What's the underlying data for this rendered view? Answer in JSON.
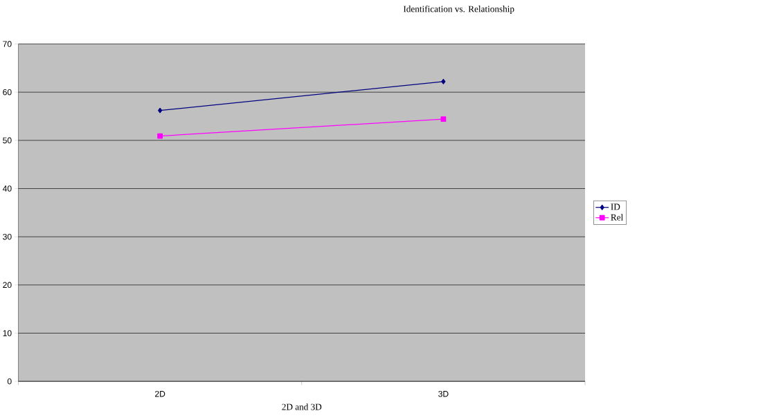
{
  "chart_data": {
    "type": "line",
    "title": "Identification vs. Relationship",
    "xlabel": "2D and 3D",
    "categories": [
      "2D",
      "3D"
    ],
    "series": [
      {
        "name": "ID",
        "color": "#000080",
        "marker": "diamond",
        "values": [
          56.2,
          62.2
        ]
      },
      {
        "name": "Rel",
        "color": "#ff00ff",
        "marker": "square",
        "values": [
          50.9,
          54.4
        ]
      }
    ],
    "ylim": [
      0,
      70
    ],
    "yticks": [
      0,
      10,
      20,
      30,
      40,
      50,
      60,
      70
    ],
    "grid": "y",
    "legend": "right"
  }
}
